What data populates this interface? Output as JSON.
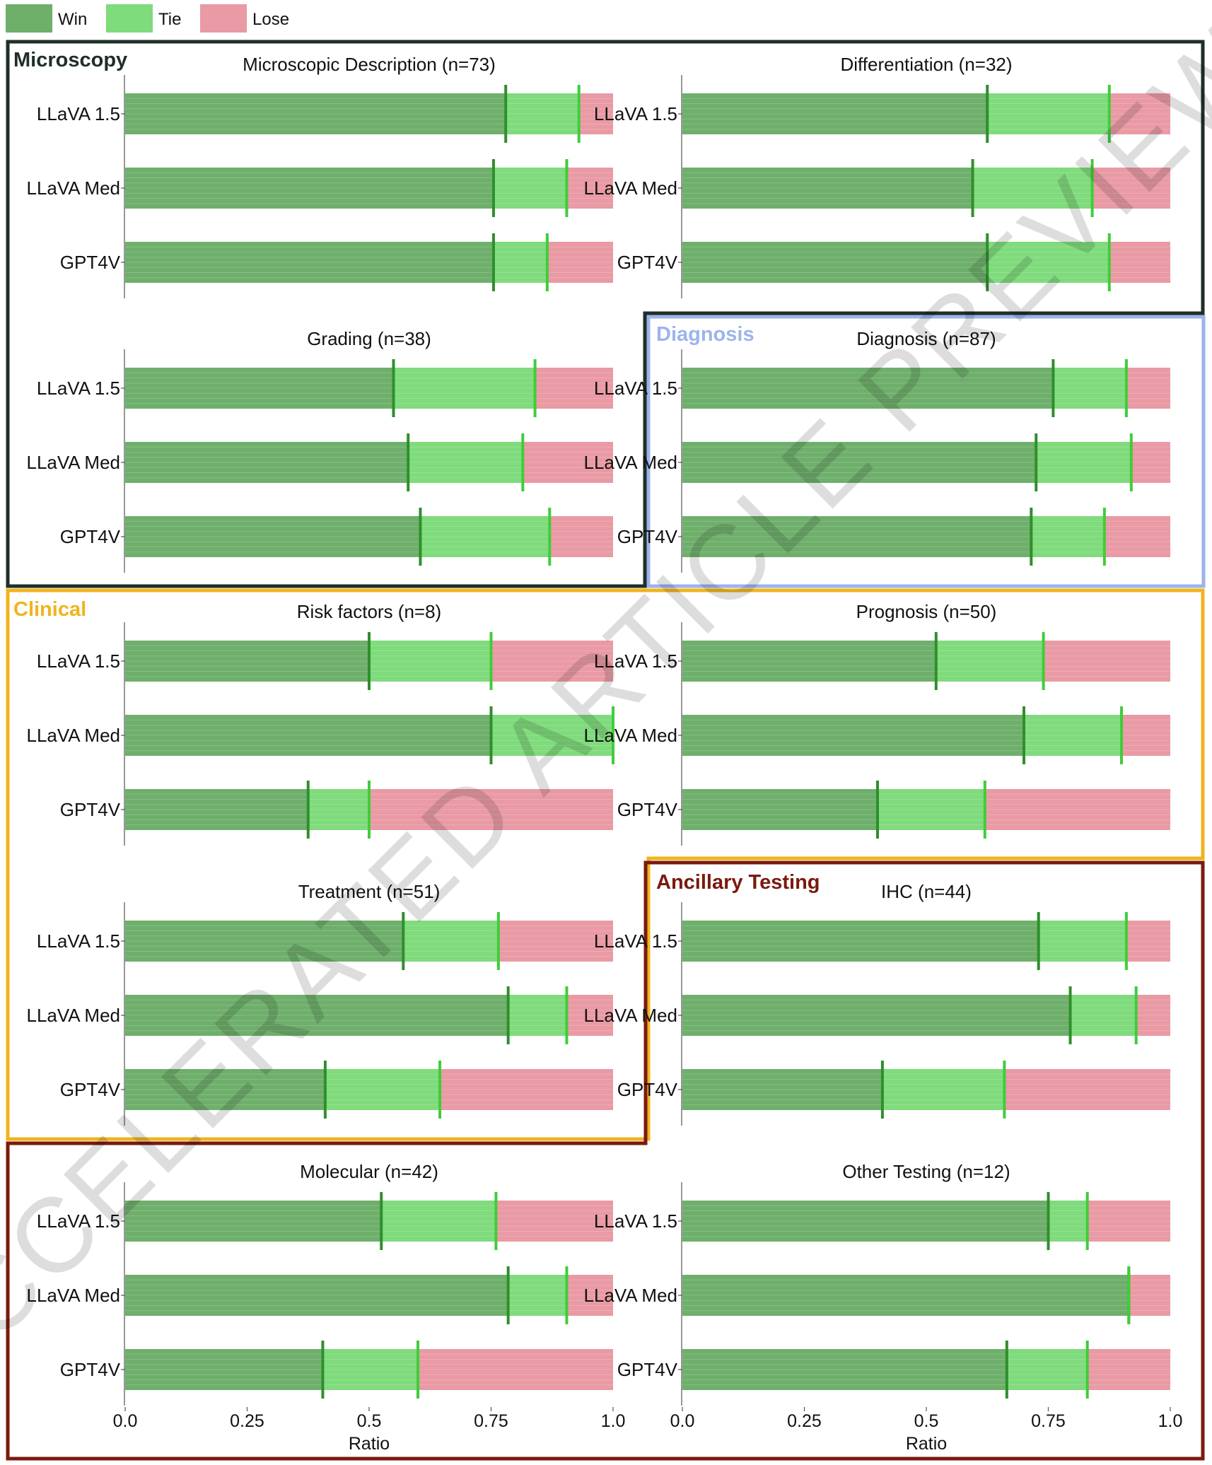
{
  "watermark": "ACCELERATED ARTICLE PREVIEW",
  "chart_data": {
    "type": "bar",
    "stacked": true,
    "orientation": "horizontal",
    "legend": {
      "placement": "top-left",
      "items": [
        {
          "key": "win",
          "label": "Win",
          "color": "#6eaf6b"
        },
        {
          "key": "tie",
          "label": "Tie",
          "color": "#7fdb7c"
        },
        {
          "key": "lose",
          "label": "Lose",
          "color": "#e99aa4"
        }
      ]
    },
    "marker_colors": {
      "win": "#2f8f2c",
      "win_plus_tie": "#3fcd3a"
    },
    "models": [
      "LLaVA 1.5",
      "LLaVA Med",
      "GPT4V"
    ],
    "xlabel": "Ratio",
    "xlim": [
      0,
      1
    ],
    "xticks": [
      "0.0",
      "0.25",
      "0.5",
      "0.75",
      "1.0"
    ],
    "sections": [
      {
        "key": "microscopy",
        "label": "Microscopy",
        "color": "#1f2f27"
      },
      {
        "key": "diagnosis",
        "label": "Diagnosis",
        "color": "#9db3ea"
      },
      {
        "key": "clinical",
        "label": "Clinical",
        "color": "#f0b41c"
      },
      {
        "key": "ancillary",
        "label": "Ancillary Testing",
        "color": "#7a1a0e"
      }
    ],
    "panels": [
      {
        "title": "Microscopic Description (n=73)",
        "section": "microscopy",
        "models": [
          {
            "win": 0.78,
            "win_tie": 0.93
          },
          {
            "win": 0.755,
            "win_tie": 0.905
          },
          {
            "win": 0.755,
            "win_tie": 0.865
          }
        ]
      },
      {
        "title": "Differentiation (n=32)",
        "section": "microscopy",
        "models": [
          {
            "win": 0.625,
            "win_tie": 0.875
          },
          {
            "win": 0.595,
            "win_tie": 0.84
          },
          {
            "win": 0.625,
            "win_tie": 0.875
          }
        ]
      },
      {
        "title": "Grading (n=38)",
        "section": "microscopy",
        "models": [
          {
            "win": 0.55,
            "win_tie": 0.84
          },
          {
            "win": 0.58,
            "win_tie": 0.815
          },
          {
            "win": 0.605,
            "win_tie": 0.87
          }
        ]
      },
      {
        "title": "Diagnosis (n=87)",
        "section": "diagnosis",
        "models": [
          {
            "win": 0.76,
            "win_tie": 0.91
          },
          {
            "win": 0.725,
            "win_tie": 0.92
          },
          {
            "win": 0.715,
            "win_tie": 0.865
          }
        ]
      },
      {
        "title": "Risk factors (n=8)",
        "section": "clinical",
        "models": [
          {
            "win": 0.5,
            "win_tie": 0.75
          },
          {
            "win": 0.75,
            "win_tie": 1.0
          },
          {
            "win": 0.375,
            "win_tie": 0.5
          }
        ]
      },
      {
        "title": "Prognosis (n=50)",
        "section": "clinical",
        "models": [
          {
            "win": 0.52,
            "win_tie": 0.74
          },
          {
            "win": 0.7,
            "win_tie": 0.9
          },
          {
            "win": 0.4,
            "win_tie": 0.62
          }
        ]
      },
      {
        "title": "Treatment (n=51)",
        "section": "clinical",
        "models": [
          {
            "win": 0.57,
            "win_tie": 0.765
          },
          {
            "win": 0.785,
            "win_tie": 0.905
          },
          {
            "win": 0.41,
            "win_tie": 0.645
          }
        ]
      },
      {
        "title": "IHC (n=44)",
        "section": "ancillary",
        "models": [
          {
            "win": 0.73,
            "win_tie": 0.91
          },
          {
            "win": 0.795,
            "win_tie": 0.93
          },
          {
            "win": 0.41,
            "win_tie": 0.66
          }
        ]
      },
      {
        "title": "Molecular (n=42)",
        "section": "ancillary",
        "models": [
          {
            "win": 0.525,
            "win_tie": 0.76
          },
          {
            "win": 0.785,
            "win_tie": 0.905
          },
          {
            "win": 0.405,
            "win_tie": 0.6
          }
        ]
      },
      {
        "title": "Other Testing (n=12)",
        "section": "ancillary",
        "models": [
          {
            "win": 0.75,
            "win_tie": 0.83
          },
          {
            "win": 0.915,
            "win_tie": 0.915
          },
          {
            "win": 0.665,
            "win_tie": 0.83
          }
        ]
      }
    ]
  }
}
